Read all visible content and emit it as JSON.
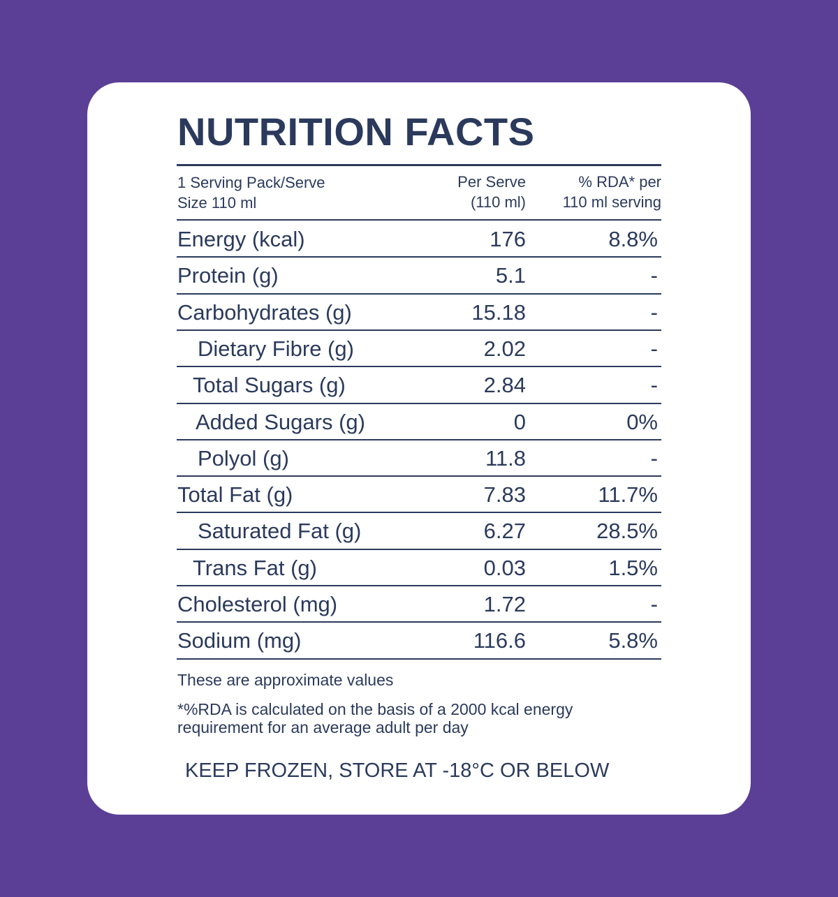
{
  "title": "NUTRITION FACTS",
  "header": {
    "serving": [
      "1 Serving Pack/Serve",
      "Size 110 ml"
    ],
    "per_serve": [
      "Per Serve",
      "(110 ml)"
    ],
    "rda": [
      "% RDA* per",
      "110 ml serving"
    ]
  },
  "table": {
    "rows": [
      [
        "Energy (kcal)",
        "176",
        "8.8%"
      ],
      [
        "Protein (g)",
        "5.1",
        "-"
      ],
      [
        "Carbohydrates (g)",
        "15.18",
        "-"
      ],
      [
        "Dietary Fibre (g)",
        "2.02",
        "-"
      ],
      [
        "Total Sugars (g)",
        "2.84",
        "-"
      ],
      [
        "Added Sugars (g)",
        "0",
        "0%"
      ],
      [
        "Polyol (g)",
        "11.8",
        "-"
      ],
      [
        "Total Fat (g)",
        "7.83",
        "11.7%"
      ],
      [
        "Saturated Fat (g)",
        "6.27",
        "28.5%"
      ],
      [
        "Trans Fat (g)",
        "0.03",
        "1.5%"
      ],
      [
        "Cholesterol (mg)",
        "1.72",
        "-"
      ],
      [
        "Sodium (mg)",
        "116.6",
        "5.8%"
      ]
    ]
  },
  "notes": {
    "approx": "These are approximate values",
    "rda": [
      "*%RDA is calculated on the basis of a 2000 kcal energy",
      "requirement for an average adult per day"
    ]
  },
  "storage": "KEEP FROZEN, STORE AT -18°C OR BELOW"
}
